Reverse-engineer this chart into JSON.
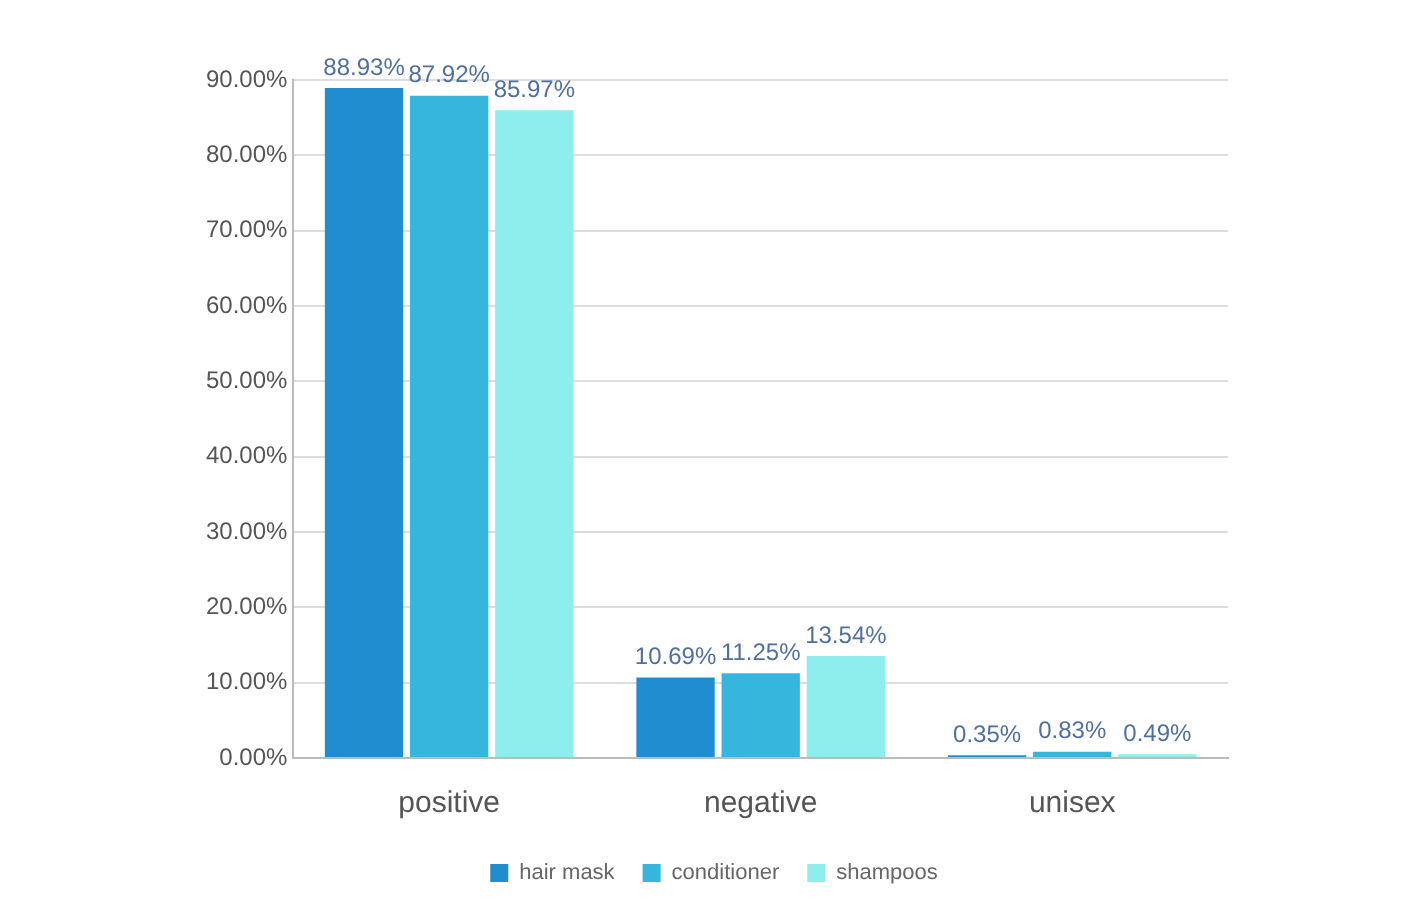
{
  "chart_data": {
    "type": "bar",
    "categories": [
      "positive",
      "negative",
      "unisex"
    ],
    "series": [
      {
        "name": "hair mask",
        "color": "#1f8dcf",
        "values": [
          88.93,
          10.69,
          0.35
        ],
        "value_labels": [
          "88.93%",
          "10.69%",
          "0.35%"
        ]
      },
      {
        "name": "conditioner",
        "color": "#35b6dc",
        "values": [
          87.92,
          11.25,
          0.83
        ],
        "value_labels": [
          "87.92%",
          "11.25%",
          "0.83%"
        ]
      },
      {
        "name": "shampoos",
        "color": "#8eeeee",
        "values": [
          85.97,
          13.54,
          0.49
        ],
        "value_labels": [
          "85.97%",
          "13.54%",
          "0.49%"
        ]
      }
    ],
    "ylim": [
      0,
      90
    ],
    "yticks": [
      {
        "value": 0,
        "label": "0.00%"
      },
      {
        "value": 10,
        "label": "10.00%"
      },
      {
        "value": 20,
        "label": "20.00%"
      },
      {
        "value": 30,
        "label": "30.00%"
      },
      {
        "value": 40,
        "label": "40.00%"
      },
      {
        "value": 50,
        "label": "50.00%"
      },
      {
        "value": 60,
        "label": "60.00%"
      },
      {
        "value": 70,
        "label": "70.00%"
      },
      {
        "value": 80,
        "label": "80.00%"
      },
      {
        "value": 90,
        "label": "90.00%"
      }
    ],
    "grid": "y",
    "legend": "bottom"
  }
}
